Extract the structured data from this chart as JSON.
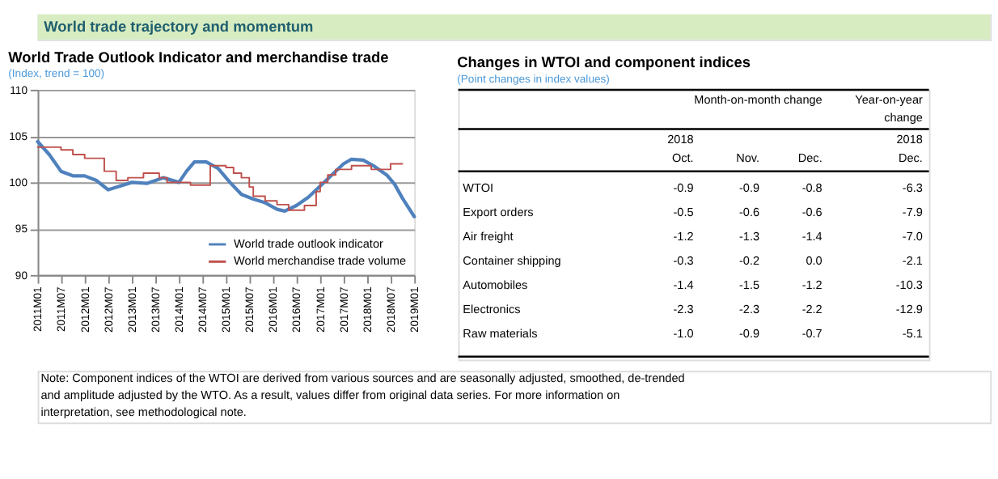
{
  "chart_data": [
    {
      "type": "other",
      "title": "World trade trajectory and momentum"
    },
    {
      "type": "line",
      "title": "World Trade Outlook Indicator and merchandise trade",
      "subtitle": "(Index, trend = 100)",
      "xlim": [
        "2011-01",
        "2019-01"
      ],
      "xticks": [
        {
          "value": "2011-01",
          "label": "2011M01"
        },
        {
          "value": "2011-07",
          "label": "2011M07"
        },
        {
          "value": "2012-01",
          "label": "2012M01"
        },
        {
          "value": "2012-07",
          "label": "2012M07"
        },
        {
          "value": "2013-01",
          "label": "2013M01"
        },
        {
          "value": "2013-07",
          "label": "2013M07"
        },
        {
          "value": "2014-01",
          "label": "2014M01"
        },
        {
          "value": "2014-07",
          "label": "2014M07"
        },
        {
          "value": "2015-01",
          "label": "2015M01"
        },
        {
          "value": "2015-07",
          "label": "2015M07"
        },
        {
          "value": "2016-01",
          "label": "2016M01"
        },
        {
          "value": "2016-07",
          "label": "2016M07"
        },
        {
          "value": "2017-01",
          "label": "2017M01"
        },
        {
          "value": "2017-07",
          "label": "2017M07"
        },
        {
          "value": "2018-01",
          "label": "2018M01"
        },
        {
          "value": "2018-07",
          "label": "2018M07"
        },
        {
          "value": "2019-01",
          "label": "2019M01"
        }
      ],
      "ylim": [
        90,
        110
      ],
      "yticks": [
        90,
        95,
        100,
        105,
        110
      ],
      "grid": "y",
      "legend": "bottom right",
      "series": [
        {
          "name": "World trade outlook indicator",
          "color": "#4f81bd",
          "x": [
            "2011-01",
            "2011-04",
            "2011-07",
            "2011-10",
            "2012-01",
            "2012-04",
            "2012-07",
            "2012-10",
            "2013-01",
            "2013-05",
            "2013-09",
            "2014-01",
            "2014-03",
            "2014-05",
            "2014-08",
            "2014-11",
            "2015-02",
            "2015-05",
            "2015-08",
            "2015-11",
            "2016-02",
            "2016-04",
            "2016-07",
            "2016-10",
            "2017-01",
            "2017-04",
            "2017-07",
            "2017-09",
            "2017-12",
            "2018-03",
            "2018-06",
            "2018-08",
            "2018-10",
            "2019-01"
          ],
          "values": [
            104.4,
            103.0,
            101.2,
            100.7,
            100.7,
            100.2,
            99.2,
            99.6,
            100.0,
            99.9,
            100.5,
            100.0,
            101.2,
            102.2,
            102.2,
            101.5,
            100.0,
            98.7,
            98.2,
            97.8,
            97.1,
            96.9,
            97.5,
            98.4,
            99.6,
            100.8,
            102.0,
            102.5,
            102.4,
            101.7,
            100.8,
            99.8,
            98.3,
            96.3
          ]
        },
        {
          "name": "World merchandise trade volume",
          "type": "step",
          "color": "#c0504d",
          "x": [
            "2011-01",
            "2011-07",
            "2011-10",
            "2012-01",
            "2012-06",
            "2012-09",
            "2012-12",
            "2013-04",
            "2013-08",
            "2013-10",
            "2014-04",
            "2014-09",
            "2015-01",
            "2015-03",
            "2015-05",
            "2015-07",
            "2015-08",
            "2015-11",
            "2016-02",
            "2016-05",
            "2016-09",
            "2016-12",
            "2017-01",
            "2017-03",
            "2017-05",
            "2017-09",
            "2018-02",
            "2018-07",
            "2018-10"
          ],
          "values": [
            103.8,
            103.5,
            103.0,
            102.6,
            101.2,
            100.2,
            100.5,
            101.0,
            100.5,
            100.0,
            99.7,
            101.8,
            101.6,
            101.0,
            100.5,
            99.5,
            98.5,
            98.0,
            97.6,
            97.0,
            97.5,
            99.0,
            100.0,
            100.8,
            101.4,
            101.8,
            101.4,
            102.0,
            102.0
          ]
        }
      ]
    },
    {
      "type": "other",
      "title": "Changes in WTOI and component indices",
      "subtitle": "(Point changes in index values)",
      "categories": [
        "WTOI",
        "Export orders",
        "Air freight",
        "Container shipping",
        "Automobiles",
        "Electronics",
        "Raw materials"
      ],
      "annotations": [
        "Month-on-month change",
        "Year-on-year change",
        "2018",
        "2018"
      ],
      "series": [
        {
          "name": "Oct.",
          "values": [
            -0.9,
            -0.5,
            -1.2,
            -0.3,
            -1.4,
            -2.3,
            -1.0
          ],
          "value_labels": [
            "-0.9",
            "-0.5",
            "-1.2",
            "-0.3",
            "-1.4",
            "-2.3",
            "-1.0"
          ]
        },
        {
          "name": "Nov.",
          "values": [
            -0.9,
            -0.6,
            -1.3,
            -0.2,
            -1.5,
            -2.3,
            -0.9
          ],
          "value_labels": [
            "-0.9",
            "-0.6",
            "-1.3",
            "-0.2",
            "-1.5",
            "-2.3",
            "-0.9"
          ]
        },
        {
          "name": "Dec.",
          "values": [
            -0.8,
            -0.6,
            -1.4,
            0.0,
            -1.2,
            -2.2,
            -0.7
          ],
          "value_labels": [
            "-0.8",
            "-0.6",
            "-1.4",
            "0.0",
            "-1.2",
            "-2.2",
            "-0.7"
          ]
        },
        {
          "name": "Dec.",
          "values": [
            -6.3,
            -7.9,
            -7.0,
            -2.1,
            -10.3,
            -12.9,
            -5.1
          ],
          "value_labels": [
            "-6.3",
            "-7.9",
            "-7.0",
            "-2.1",
            "-10.3",
            "-12.9",
            "-5.1"
          ]
        }
      ]
    },
    {
      "type": "other",
      "annotations": [
        "Note: Component indices of the WTOI are derived from various sources and are seasonally adjusted, smoothed, de-trended and amplitude adjusted by the WTO.  As a result, values differ from original data series.  For more information on interpretation, see methodological note."
      ]
    }
  ]
}
